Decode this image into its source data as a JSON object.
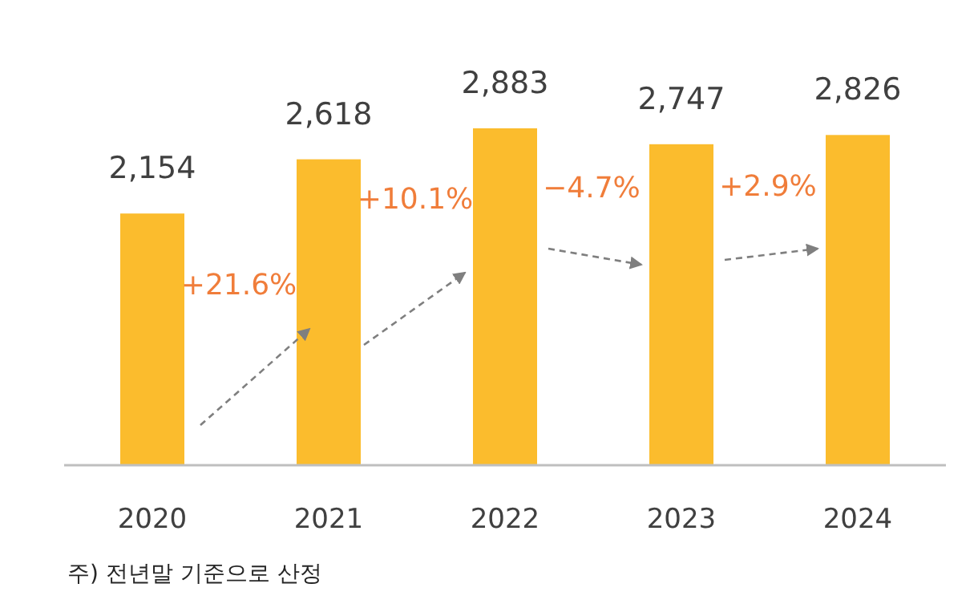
{
  "chart_data": {
    "type": "bar",
    "categories": [
      "2020",
      "2021",
      "2022",
      "2023",
      "2024"
    ],
    "values": [
      2154,
      2618,
      2883,
      2747,
      2826
    ],
    "color": "#fbbc2d",
    "data_labels": true,
    "value_labels": [
      "2,154",
      "2,618",
      "2,883",
      "2,747",
      "2,826"
    ],
    "annotations": [
      "+21.6%",
      "+10.1%",
      "−4.7%",
      "+2.9%",
      "주) 전년말 기준으로 산정"
    ]
  }
}
